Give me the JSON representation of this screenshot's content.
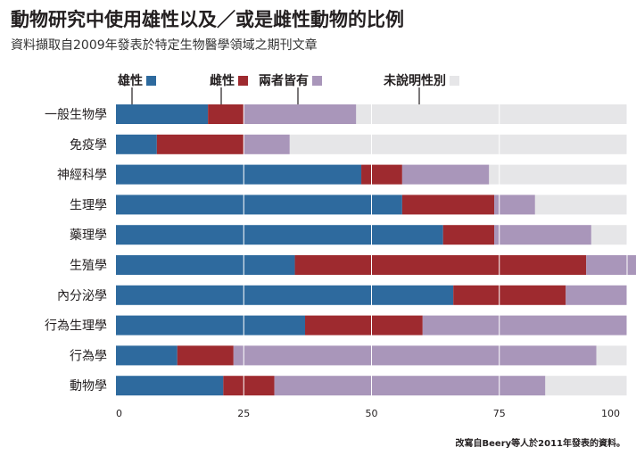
{
  "title": "動物研究中使用雄性以及／或是雌性動物的比例",
  "subtitle": "資料擷取自2009年發表於特定生物醫學領域之期刊文章",
  "footnote": "改寫自Beery等人於2011年發表的資料。",
  "colors": {
    "male": "#2e6a9e",
    "female": "#9e2a2f",
    "both": "#a996ba",
    "unspecified": "#e6e6e8"
  },
  "chart_data": {
    "type": "bar",
    "orientation": "horizontal",
    "stacked": true,
    "categories": [
      "一般生物學",
      "免疫學",
      "神經科學",
      "生理學",
      "藥理學",
      "生殖學",
      "內分泌學",
      "行為生理學",
      "行為學",
      "動物學"
    ],
    "series": [
      {
        "name": "雄性",
        "key": "male",
        "values": [
          18,
          8,
          48,
          56,
          64,
          35,
          66,
          37,
          12,
          21
        ]
      },
      {
        "name": "雌性",
        "key": "female",
        "values": [
          7,
          17,
          8,
          18,
          10,
          57,
          22,
          23,
          11,
          10
        ]
      },
      {
        "name": "兩者皆有",
        "key": "both",
        "values": [
          22,
          9,
          17,
          8,
          19,
          10,
          12,
          40,
          71,
          53
        ]
      },
      {
        "name": "未說明性別",
        "key": "unspecified",
        "values": [
          53,
          66,
          27,
          18,
          7,
          0,
          0,
          0,
          6,
          16
        ]
      }
    ],
    "xlim": [
      0,
      100
    ],
    "xticks": [
      0,
      25,
      50,
      75,
      100
    ],
    "grid": true,
    "legend": "top"
  }
}
